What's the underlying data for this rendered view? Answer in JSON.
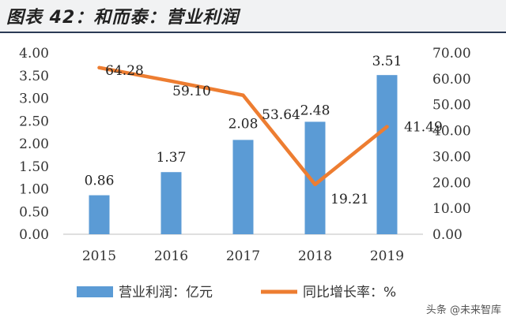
{
  "header": {
    "title": "图表 42：和而泰：营业利润"
  },
  "chart_data": {
    "type": "bar+line",
    "categories": [
      "2015",
      "2016",
      "2017",
      "2018",
      "2019"
    ],
    "series": [
      {
        "name": "营业利润：亿元",
        "type": "bar",
        "axis": "left",
        "values": [
          0.86,
          1.37,
          2.08,
          2.48,
          3.51
        ],
        "labels": [
          "0.86",
          "1.37",
          "2.08",
          "2.48",
          "3.51"
        ],
        "color": "#5b9bd5"
      },
      {
        "name": "同比增长率：%",
        "type": "line",
        "axis": "right",
        "values": [
          64.28,
          59.1,
          53.64,
          19.21,
          41.49
        ],
        "labels": [
          "64.28",
          "59.10",
          "53.64",
          "19.21",
          "41.49"
        ],
        "color": "#ed7d31"
      }
    ],
    "y_left": {
      "min": 0,
      "max": 4,
      "ticks": [
        "0.00",
        "0.50",
        "1.00",
        "1.50",
        "2.00",
        "2.50",
        "3.00",
        "3.50",
        "4.00"
      ]
    },
    "y_right": {
      "min": 0,
      "max": 70,
      "ticks": [
        "0.00",
        "10.00",
        "20.00",
        "30.00",
        "40.00",
        "50.00",
        "60.00",
        "70.00"
      ]
    },
    "legend_position": "bottom",
    "grid": false
  },
  "watermark": {
    "text": "头条 @未来智库"
  }
}
